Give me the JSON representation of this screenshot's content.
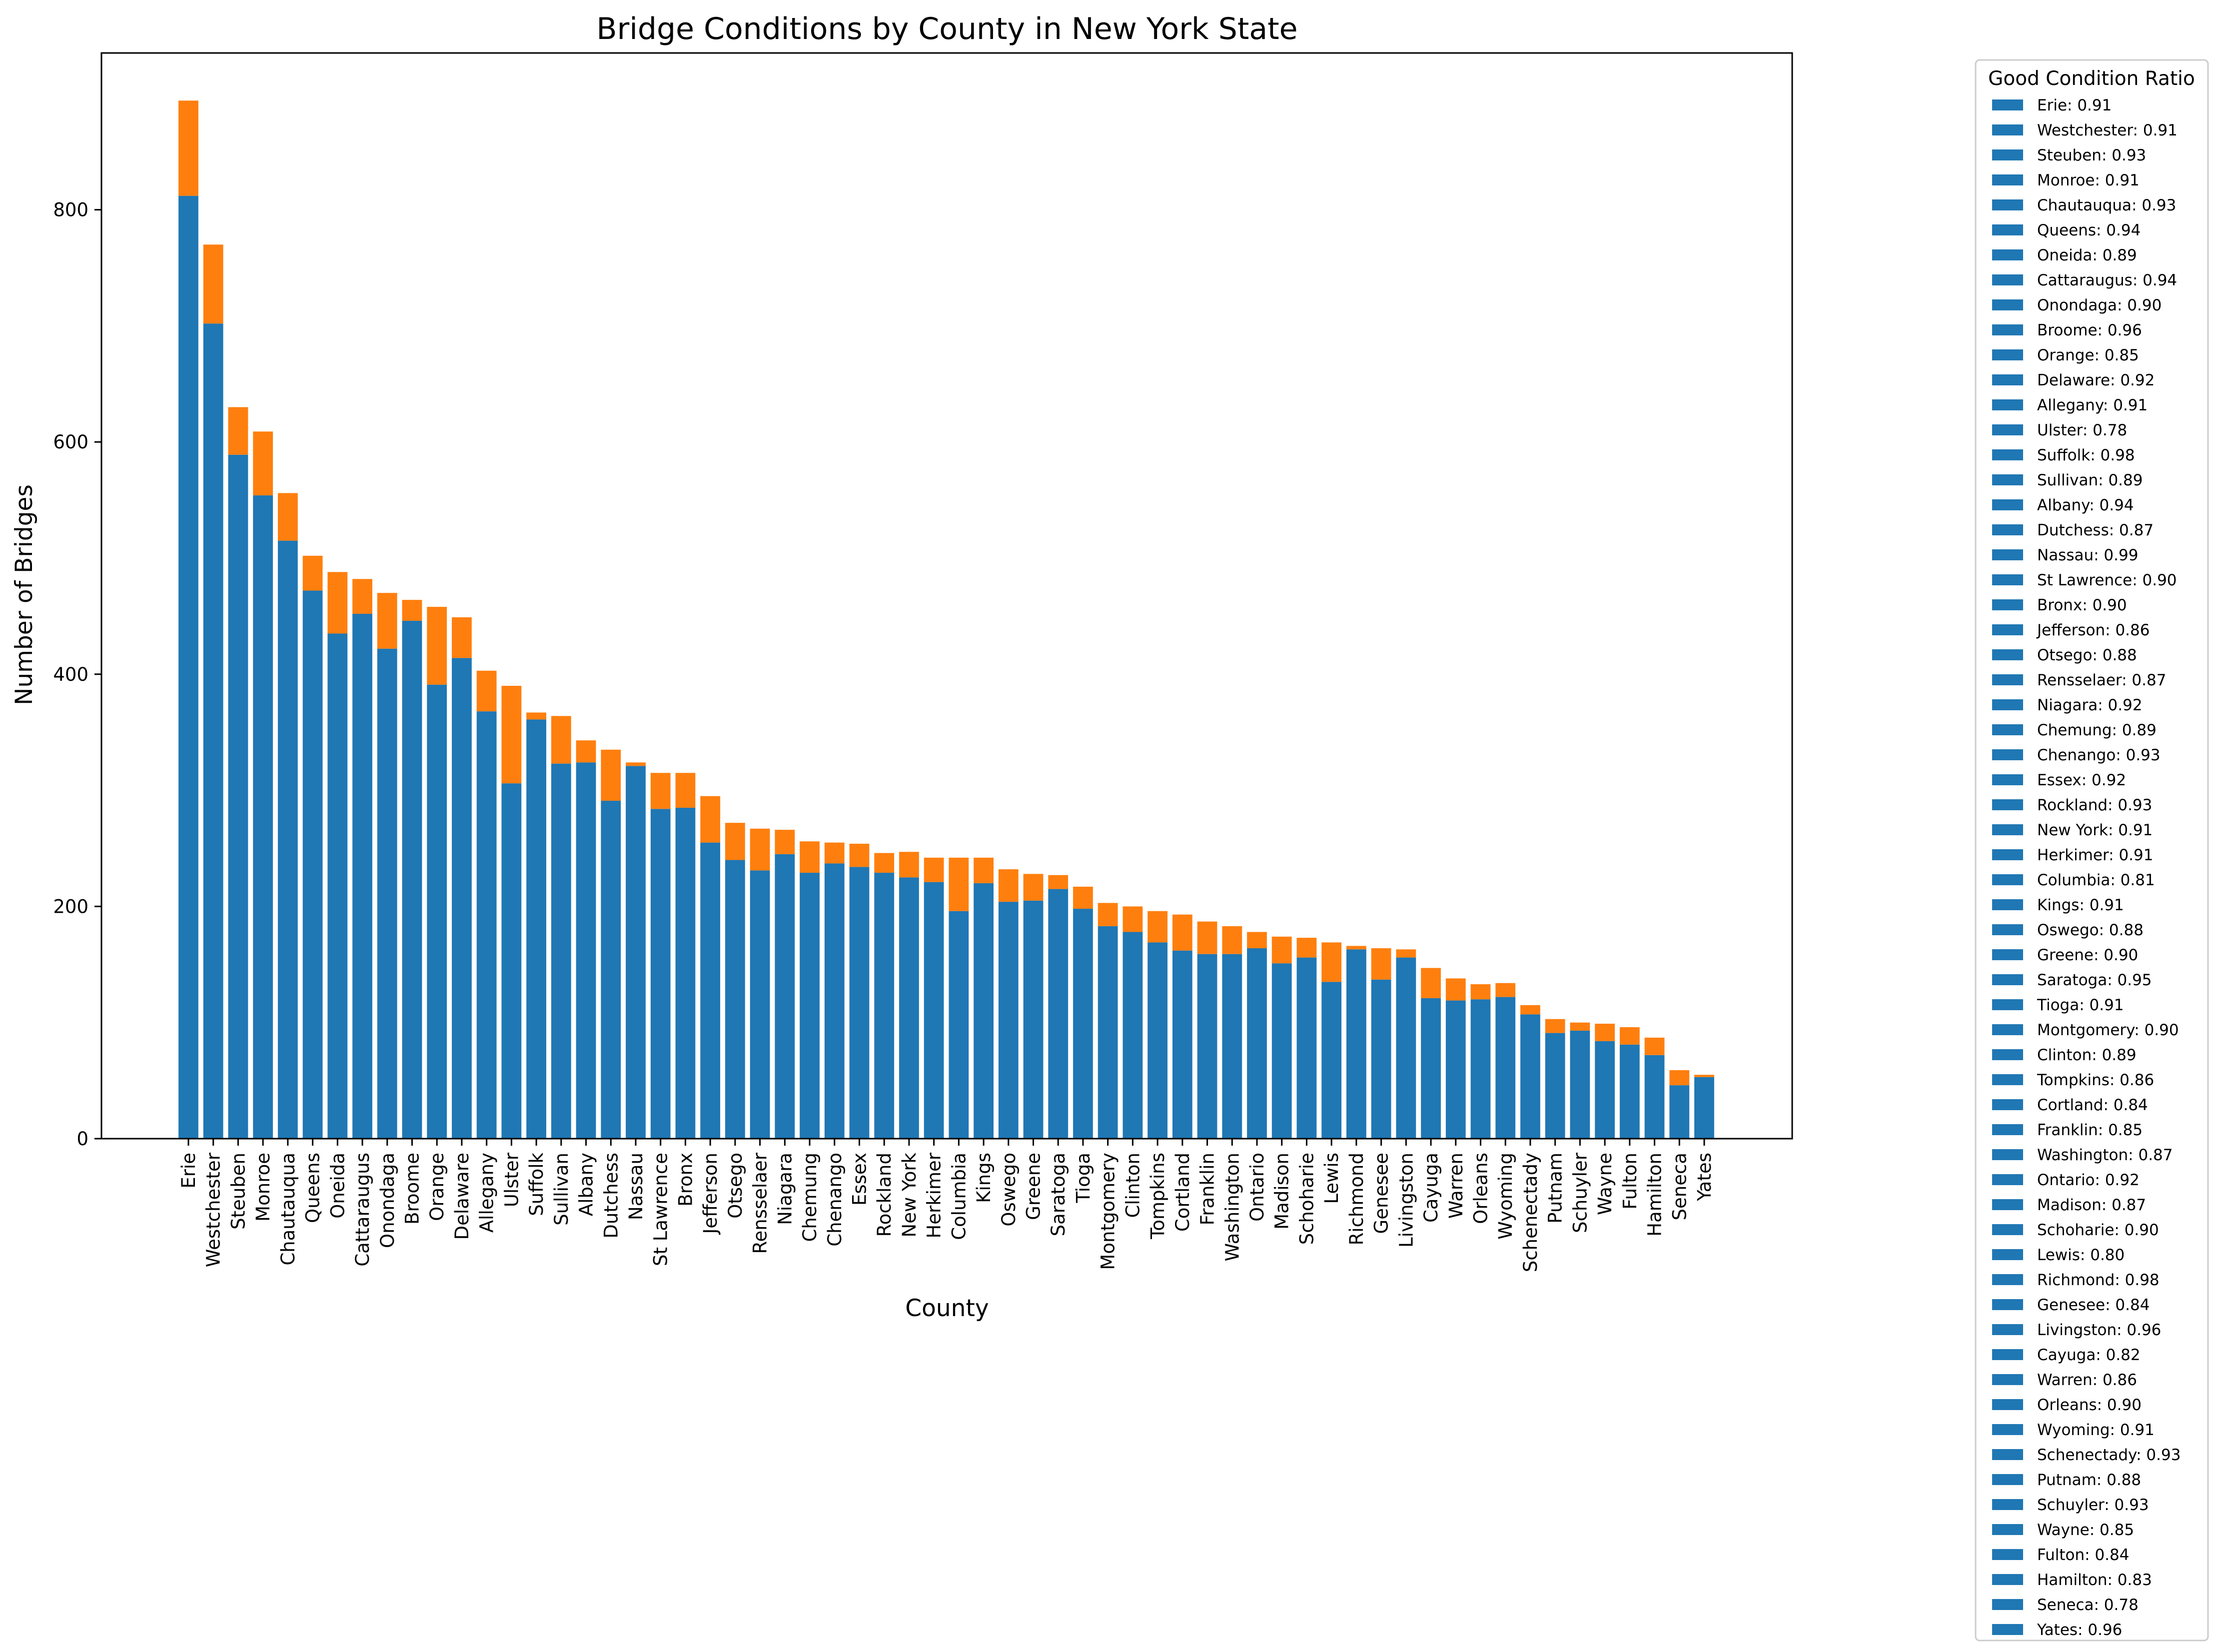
{
  "chart_data": {
    "type": "bar",
    "stacked": true,
    "title": "Bridge Conditions by County in New York State",
    "xlabel": "County",
    "ylabel": "Number of Bridges",
    "ylim": [
      0,
      935
    ],
    "yticks": [
      0,
      200,
      400,
      600,
      800
    ],
    "grid": false,
    "legend": {
      "title": "Good Condition Ratio",
      "placement": "outside-right",
      "entries": [
        "Erie: 0.91",
        "Westchester: 0.91",
        "Steuben: 0.93",
        "Monroe: 0.91",
        "Chautauqua: 0.93",
        "Queens: 0.94",
        "Oneida: 0.89",
        "Cattaraugus: 0.94",
        "Onondaga: 0.90",
        "Broome: 0.96",
        "Orange: 0.85",
        "Delaware: 0.92",
        "Allegany: 0.91",
        "Ulster: 0.78",
        "Suffolk: 0.98",
        "Sullivan: 0.89",
        "Albany: 0.94",
        "Dutchess: 0.87",
        "Nassau: 0.99",
        "St Lawrence: 0.90",
        "Bronx: 0.90",
        "Jefferson: 0.86",
        "Otsego: 0.88",
        "Rensselaer: 0.87",
        "Niagara: 0.92",
        "Chemung: 0.89",
        "Chenango: 0.93",
        "Essex: 0.92",
        "Rockland: 0.93",
        "New York: 0.91",
        "Herkimer: 0.91",
        "Columbia: 0.81",
        "Kings: 0.91",
        "Oswego: 0.88",
        "Greene: 0.90",
        "Saratoga: 0.95",
        "Tioga: 0.91",
        "Montgomery: 0.90",
        "Clinton: 0.89",
        "Tompkins: 0.86",
        "Cortland: 0.84",
        "Franklin: 0.85",
        "Washington: 0.87",
        "Ontario: 0.92",
        "Madison: 0.87",
        "Schoharie: 0.90",
        "Lewis: 0.80",
        "Richmond: 0.98",
        "Genesee: 0.84",
        "Livingston: 0.96",
        "Cayuga: 0.82",
        "Warren: 0.86",
        "Orleans: 0.90",
        "Wyoming: 0.91",
        "Schenectady: 0.93",
        "Putnam: 0.88",
        "Schuyler: 0.93",
        "Wayne: 0.85",
        "Fulton: 0.84",
        "Hamilton: 0.83",
        "Seneca: 0.78",
        "Yates: 0.96"
      ]
    },
    "categories": [
      "Erie",
      "Westchester",
      "Steuben",
      "Monroe",
      "Chautauqua",
      "Queens",
      "Oneida",
      "Cattaraugus",
      "Onondaga",
      "Broome",
      "Orange",
      "Delaware",
      "Allegany",
      "Ulster",
      "Suffolk",
      "Sullivan",
      "Albany",
      "Dutchess",
      "Nassau",
      "St Lawrence",
      "Bronx",
      "Jefferson",
      "Otsego",
      "Rensselaer",
      "Niagara",
      "Chemung",
      "Chenango",
      "Essex",
      "Rockland",
      "New York",
      "Herkimer",
      "Columbia",
      "Kings",
      "Oswego",
      "Greene",
      "Saratoga",
      "Tioga",
      "Montgomery",
      "Clinton",
      "Tompkins",
      "Cortland",
      "Franklin",
      "Washington",
      "Ontario",
      "Madison",
      "Schoharie",
      "Lewis",
      "Richmond",
      "Genesee",
      "Livingston",
      "Cayuga",
      "Warren",
      "Orleans",
      "Wyoming",
      "Schenectady",
      "Putnam",
      "Schuyler",
      "Wayne",
      "Fulton",
      "Hamilton",
      "Seneca",
      "Yates"
    ],
    "series": [
      {
        "color": "#1f77b4",
        "values": [
          812,
          702,
          589,
          554,
          515,
          472,
          435,
          452,
          422,
          446,
          391,
          414,
          368,
          306,
          361,
          323,
          324,
          291,
          321,
          284,
          285,
          255,
          240,
          231,
          245,
          229,
          237,
          234,
          229,
          225,
          221,
          196,
          220,
          204,
          205,
          215,
          198,
          183,
          178,
          169,
          162,
          159,
          159,
          164,
          151,
          156,
          135,
          163,
          137,
          156,
          121,
          119,
          120,
          122,
          107,
          91,
          93,
          84,
          81,
          72,
          46,
          53
        ]
      },
      {
        "color": "#ff7f0e",
        "values": [
          82,
          68,
          41,
          55,
          41,
          30,
          53,
          30,
          48,
          18,
          67,
          35,
          35,
          84,
          6,
          41,
          19,
          44,
          3,
          31,
          30,
          40,
          32,
          36,
          21,
          27,
          18,
          20,
          17,
          22,
          21,
          46,
          22,
          28,
          23,
          12,
          19,
          20,
          22,
          27,
          31,
          28,
          24,
          14,
          23,
          17,
          34,
          3,
          27,
          7,
          26,
          19,
          13,
          12,
          8,
          12,
          7,
          15,
          15,
          15,
          13,
          2
        ]
      }
    ]
  }
}
